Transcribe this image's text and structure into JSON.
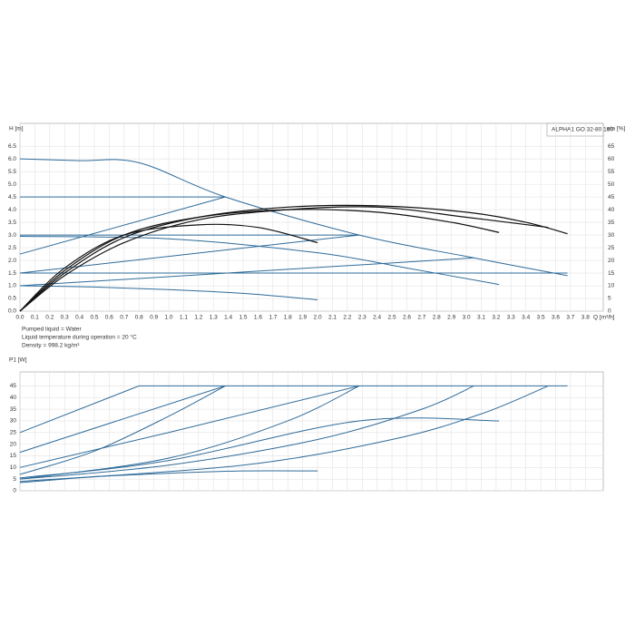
{
  "chart_data": [
    {
      "type": "line",
      "title": "ALPHA1 GO 32-80 180",
      "ylabel": "H [m]",
      "y2label": "eta [%]",
      "xlabel": "Q [m³/h]",
      "xlim": [
        0,
        3.92
      ],
      "ylim": [
        0,
        7.4
      ],
      "y2lim": [
        0,
        74
      ],
      "grid": true,
      "xticks": [
        {
          "value": 0,
          "label": "0.0"
        },
        0.1,
        0.2,
        0.3,
        0.4,
        0.5,
        0.6,
        0.7,
        0.8,
        0.9,
        {
          "value": 1,
          "label": "1.0"
        },
        1.1,
        1.2,
        1.3,
        1.4,
        1.5,
        1.6,
        1.7,
        1.8,
        1.9,
        {
          "value": 2,
          "label": "2.0"
        },
        2.1,
        2.2,
        2.3,
        2.4,
        2.5,
        2.6,
        2.7,
        2.8,
        2.9,
        {
          "value": 3,
          "label": "3.0"
        },
        3.1,
        3.2,
        3.3,
        3.4,
        3.5,
        3.6,
        3.7,
        3.8
      ],
      "yticks": [
        {
          "value": 0,
          "label": "0.0"
        },
        0.5,
        {
          "value": 1,
          "label": "1.0"
        },
        1.5,
        {
          "value": 2,
          "label": "2.0"
        },
        2.5,
        {
          "value": 3,
          "label": "3.0"
        },
        3.5,
        {
          "value": 4,
          "label": "4.0"
        },
        4.5,
        {
          "value": 5,
          "label": "5.0"
        },
        5.5,
        {
          "value": 6,
          "label": "6.0"
        },
        6.5
      ],
      "y2ticks": [
        0,
        5,
        10,
        15,
        20,
        25,
        30,
        35,
        40,
        45,
        50,
        55,
        60,
        65
      ],
      "series": [
        {
          "color": "#2f6b99",
          "x": [
            0,
            0.4,
            0.8,
            1.38,
            2.28,
            3.05,
            3.68
          ],
          "values": [
            6.0,
            5.93,
            5.85,
            4.5,
            3.0,
            2.1,
            1.4
          ]
        },
        {
          "color": "#2f6b99",
          "x": [
            0,
            1.38
          ],
          "values": [
            4.5,
            4.5
          ]
        },
        {
          "color": "#2f6b99",
          "x": [
            0,
            2.28
          ],
          "values": [
            3.0,
            3.0
          ]
        },
        {
          "color": "#2f6b99",
          "x": [
            0,
            3.68
          ],
          "values": [
            1.5,
            1.5
          ]
        },
        {
          "color": "#2f6b99",
          "x": [
            0,
            1.38
          ],
          "values": [
            2.25,
            4.5
          ]
        },
        {
          "color": "#2f6b99",
          "x": [
            0,
            2.28
          ],
          "values": [
            1.5,
            3.0
          ]
        },
        {
          "color": "#2f6b99",
          "x": [
            0,
            3.05
          ],
          "values": [
            1.0,
            2.1
          ]
        },
        {
          "color": "#2f6b99",
          "x": [
            0,
            1.0,
            2.0,
            2.6,
            3.22
          ],
          "values": [
            2.95,
            2.85,
            2.3,
            1.7,
            1.05
          ]
        },
        {
          "color": "#2f6b99",
          "x": [
            0,
            0.5,
            1.0,
            1.5,
            2.0
          ],
          "values": [
            1.0,
            0.95,
            0.85,
            0.7,
            0.45
          ]
        },
        {
          "color": "#111111",
          "axis": "y2",
          "x": [
            0,
            0.3,
            0.7,
            1.2,
            1.8,
            2.4,
            3.0,
            3.4,
            3.68
          ],
          "values": [
            0,
            15,
            29,
            37,
            41,
            41.5,
            39,
            35,
            30.5
          ]
        },
        {
          "color": "#111111",
          "axis": "y2",
          "x": [
            0,
            0.3,
            0.7,
            1.2,
            1.8,
            2.4,
            2.9,
            3.22
          ],
          "values": [
            0,
            16,
            30,
            37,
            40,
            39,
            35,
            31
          ]
        },
        {
          "color": "#111111",
          "axis": "y2",
          "x": [
            0,
            0.3,
            0.7,
            1.2,
            1.6,
            2.0
          ],
          "values": [
            0,
            17,
            30,
            34,
            33,
            27
          ]
        },
        {
          "color": "#111111",
          "axis": "y2",
          "x": [
            0,
            0.3,
            0.7,
            1.2,
            1.8,
            2.4,
            3.0,
            3.55
          ],
          "values": [
            0,
            14,
            27,
            36,
            40,
            41,
            37,
            33
          ]
        }
      ]
    },
    {
      "type": "line",
      "notes": [
        "Pumped liquid = Water",
        "Liquid temperature during operation = 20 °C",
        "Density = 998.2 kg/m³"
      ],
      "ylabel": "P1 [W]",
      "xlim": [
        0,
        3.92
      ],
      "ylim": [
        0,
        51
      ],
      "grid": true,
      "yticks": [
        0,
        5,
        10,
        15,
        20,
        25,
        30,
        35,
        40,
        45
      ],
      "series": [
        {
          "color": "#2f6b99",
          "x": [
            0,
            0.8,
            3.68
          ],
          "values": [
            25,
            45,
            45
          ]
        },
        {
          "color": "#2f6b99",
          "x": [
            0,
            1.38
          ],
          "values": [
            16.5,
            45
          ]
        },
        {
          "color": "#2f6b99",
          "x": [
            0,
            0.5,
            1.0,
            1.38
          ],
          "values": [
            7,
            17,
            32,
            45
          ]
        },
        {
          "color": "#2f6b99",
          "x": [
            0,
            1.0,
            2.28
          ],
          "values": [
            10,
            25,
            45
          ]
        },
        {
          "color": "#2f6b99",
          "x": [
            0,
            1.0,
            1.8,
            2.28
          ],
          "values": [
            5,
            14,
            30,
            45
          ]
        },
        {
          "color": "#2f6b99",
          "x": [
            0,
            1.0,
            2.0,
            2.7,
            3.05
          ],
          "values": [
            5,
            11,
            22,
            35,
            45
          ]
        },
        {
          "color": "#2f6b99",
          "x": [
            0,
            1.5,
            2.5,
            3.1,
            3.55
          ],
          "values": [
            4,
            11,
            22,
            33,
            45
          ]
        },
        {
          "color": "#2f6b99",
          "x": [
            0,
            1.0,
            2.28,
            3.22
          ],
          "values": [
            5.5,
            13,
            30,
            30
          ]
        },
        {
          "color": "#2f6b99",
          "x": [
            0,
            0.5,
            1.0,
            1.5,
            2.0
          ],
          "values": [
            3.5,
            6,
            7.5,
            8.5,
            8.5
          ]
        }
      ]
    }
  ]
}
